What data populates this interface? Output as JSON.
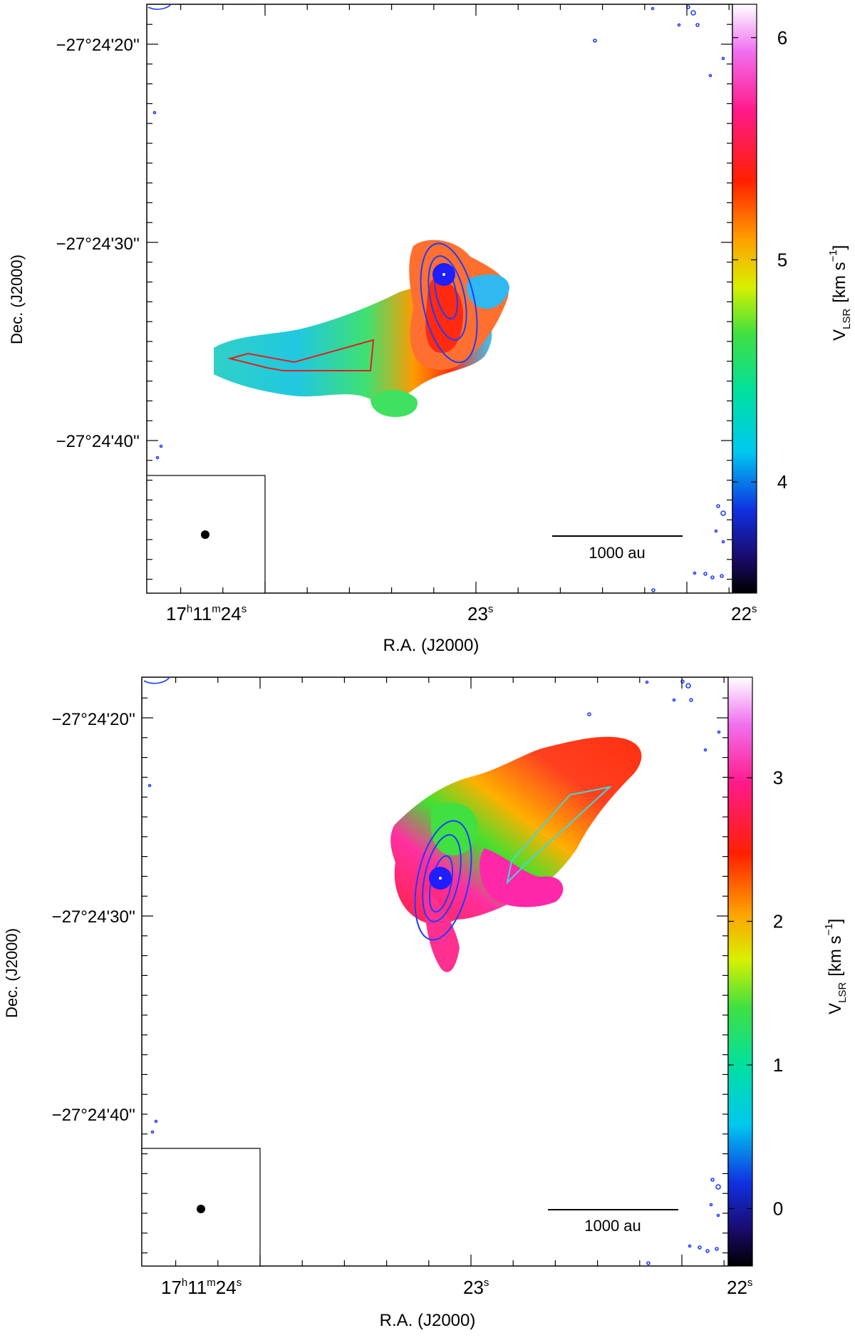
{
  "chart_data": [
    {
      "type": "heatmap",
      "id": "top",
      "title": "",
      "xlabel": "R.A. (J2000)",
      "ylabel": "Dec. (J2000)",
      "x_ticks": [
        {
          "h": "17",
          "m": "11",
          "s": "24",
          "style": "hms"
        },
        {
          "s": "23",
          "style": "s"
        },
        {
          "s": "22",
          "style": "s"
        }
      ],
      "y_ticks": [
        "−27°24'20''",
        "−27°24'30''",
        "−27°24'40''"
      ],
      "colorbar": {
        "label_main": "V",
        "label_sub": "LSR",
        "label_units": "[km s",
        "label_exp": "−1",
        "label_close": "]",
        "range": [
          3.5,
          6.15
        ],
        "ticks": [
          "4",
          "5",
          "6"
        ],
        "tick_values": [
          4,
          5,
          6
        ]
      },
      "scale_bar_label": "1000 au",
      "overlay_color": "#e02020",
      "contour_color": "#1e3cff",
      "velocity_gradient": "east blueshifted ~3.9-4.5, near source redshifted ~5.3-5.8"
    },
    {
      "type": "heatmap",
      "id": "bottom",
      "title": "",
      "xlabel": "R.A. (J2000)",
      "ylabel": "Dec. (J2000)",
      "x_ticks": [
        {
          "h": "17",
          "m": "11",
          "s": "24",
          "style": "hms"
        },
        {
          "s": "23",
          "style": "s"
        },
        {
          "s": "22",
          "style": "s"
        }
      ],
      "y_ticks": [
        "−27°24'20''",
        "−27°24'30''",
        "−27°24'40''"
      ],
      "colorbar": {
        "label_main": "V",
        "label_sub": "LSR",
        "label_units": "[km s",
        "label_exp": "−1",
        "label_close": "]",
        "range": [
          -0.4,
          3.7
        ],
        "ticks": [
          "0",
          "1",
          "2",
          "3"
        ],
        "tick_values": [
          0,
          1,
          2,
          3
        ]
      },
      "scale_bar_label": "1000 au",
      "overlay_color": "#40d8d8",
      "contour_color": "#1e3cff",
      "velocity_gradient": "north-west ~2.6-3.0, near source green ~1.3-1.8"
    }
  ]
}
